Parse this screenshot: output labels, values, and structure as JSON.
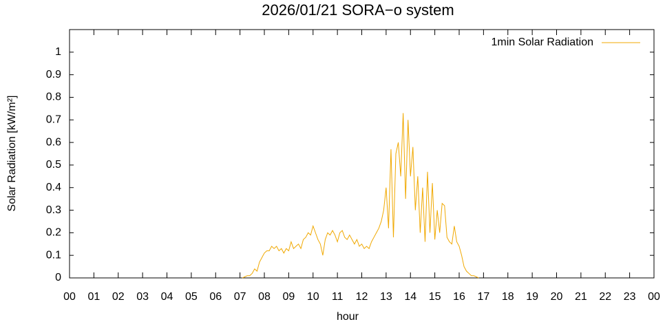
{
  "chart_data": {
    "type": "line",
    "title": "2026/01/21 SORA−o system",
    "x_label": "hour",
    "y_label": "Solar Radiation [kW/m²]",
    "legend": "top-right",
    "grid": false,
    "xlim": [
      0,
      24
    ],
    "xticks": [
      {
        "value": 0,
        "label": "00"
      },
      {
        "value": 1,
        "label": "01"
      },
      {
        "value": 2,
        "label": "02"
      },
      {
        "value": 3,
        "label": "03"
      },
      {
        "value": 4,
        "label": "04"
      },
      {
        "value": 5,
        "label": "05"
      },
      {
        "value": 6,
        "label": "06"
      },
      {
        "value": 7,
        "label": "07"
      },
      {
        "value": 8,
        "label": "08"
      },
      {
        "value": 9,
        "label": "09"
      },
      {
        "value": 10,
        "label": "10"
      },
      {
        "value": 11,
        "label": "11"
      },
      {
        "value": 12,
        "label": "12"
      },
      {
        "value": 13,
        "label": "13"
      },
      {
        "value": 14,
        "label": "14"
      },
      {
        "value": 15,
        "label": "15"
      },
      {
        "value": 16,
        "label": "16"
      },
      {
        "value": 17,
        "label": "17"
      },
      {
        "value": 18,
        "label": "18"
      },
      {
        "value": 19,
        "label": "19"
      },
      {
        "value": 20,
        "label": "20"
      },
      {
        "value": 21,
        "label": "21"
      },
      {
        "value": 22,
        "label": "22"
      },
      {
        "value": 23,
        "label": "23"
      },
      {
        "value": 24,
        "label": "00"
      }
    ],
    "ylim": [
      0,
      1.1
    ],
    "yticks": [
      0,
      0.1,
      0.2,
      0.3,
      0.4,
      0.5,
      0.6,
      0.7,
      0.8,
      0.9,
      1
    ],
    "x": [
      7.1,
      7.2,
      7.3,
      7.4,
      7.5,
      7.6,
      7.7,
      7.8,
      7.9,
      8.0,
      8.1,
      8.2,
      8.3,
      8.4,
      8.5,
      8.6,
      8.7,
      8.8,
      8.9,
      9.0,
      9.1,
      9.2,
      9.3,
      9.4,
      9.5,
      9.6,
      9.7,
      9.8,
      9.9,
      10.0,
      10.1,
      10.2,
      10.3,
      10.4,
      10.5,
      10.6,
      10.7,
      10.8,
      10.9,
      11.0,
      11.1,
      11.2,
      11.3,
      11.4,
      11.5,
      11.6,
      11.7,
      11.8,
      11.9,
      12.0,
      12.1,
      12.2,
      12.3,
      12.4,
      12.5,
      12.6,
      12.7,
      12.8,
      12.9,
      13.0,
      13.1,
      13.2,
      13.3,
      13.4,
      13.5,
      13.6,
      13.7,
      13.8,
      13.9,
      14.0,
      14.1,
      14.2,
      14.3,
      14.4,
      14.5,
      14.6,
      14.7,
      14.8,
      14.9,
      15.0,
      15.1,
      15.2,
      15.3,
      15.4,
      15.5,
      15.6,
      15.7,
      15.8,
      15.9,
      16.0,
      16.1,
      16.2,
      16.3,
      16.4,
      16.5,
      16.6,
      16.7,
      16.8
    ],
    "series": [
      {
        "name": "1min Solar Radiation",
        "color": "#f0a800",
        "values": [
          0,
          0.005,
          0.01,
          0.01,
          0.02,
          0.04,
          0.03,
          0.07,
          0.09,
          0.11,
          0.12,
          0.12,
          0.14,
          0.13,
          0.14,
          0.12,
          0.13,
          0.11,
          0.13,
          0.12,
          0.16,
          0.13,
          0.14,
          0.15,
          0.13,
          0.17,
          0.18,
          0.2,
          0.19,
          0.23,
          0.2,
          0.17,
          0.15,
          0.1,
          0.17,
          0.2,
          0.19,
          0.21,
          0.19,
          0.16,
          0.2,
          0.21,
          0.18,
          0.17,
          0.19,
          0.17,
          0.15,
          0.17,
          0.14,
          0.15,
          0.13,
          0.14,
          0.13,
          0.16,
          0.18,
          0.2,
          0.22,
          0.25,
          0.3,
          0.4,
          0.22,
          0.57,
          0.18,
          0.55,
          0.6,
          0.45,
          0.73,
          0.35,
          0.7,
          0.45,
          0.58,
          0.3,
          0.45,
          0.2,
          0.4,
          0.16,
          0.47,
          0.2,
          0.42,
          0.17,
          0.3,
          0.2,
          0.33,
          0.32,
          0.18,
          0.16,
          0.15,
          0.23,
          0.16,
          0.14,
          0.1,
          0.05,
          0.03,
          0.02,
          0.01,
          0.01,
          0.005,
          0
        ]
      }
    ]
  }
}
